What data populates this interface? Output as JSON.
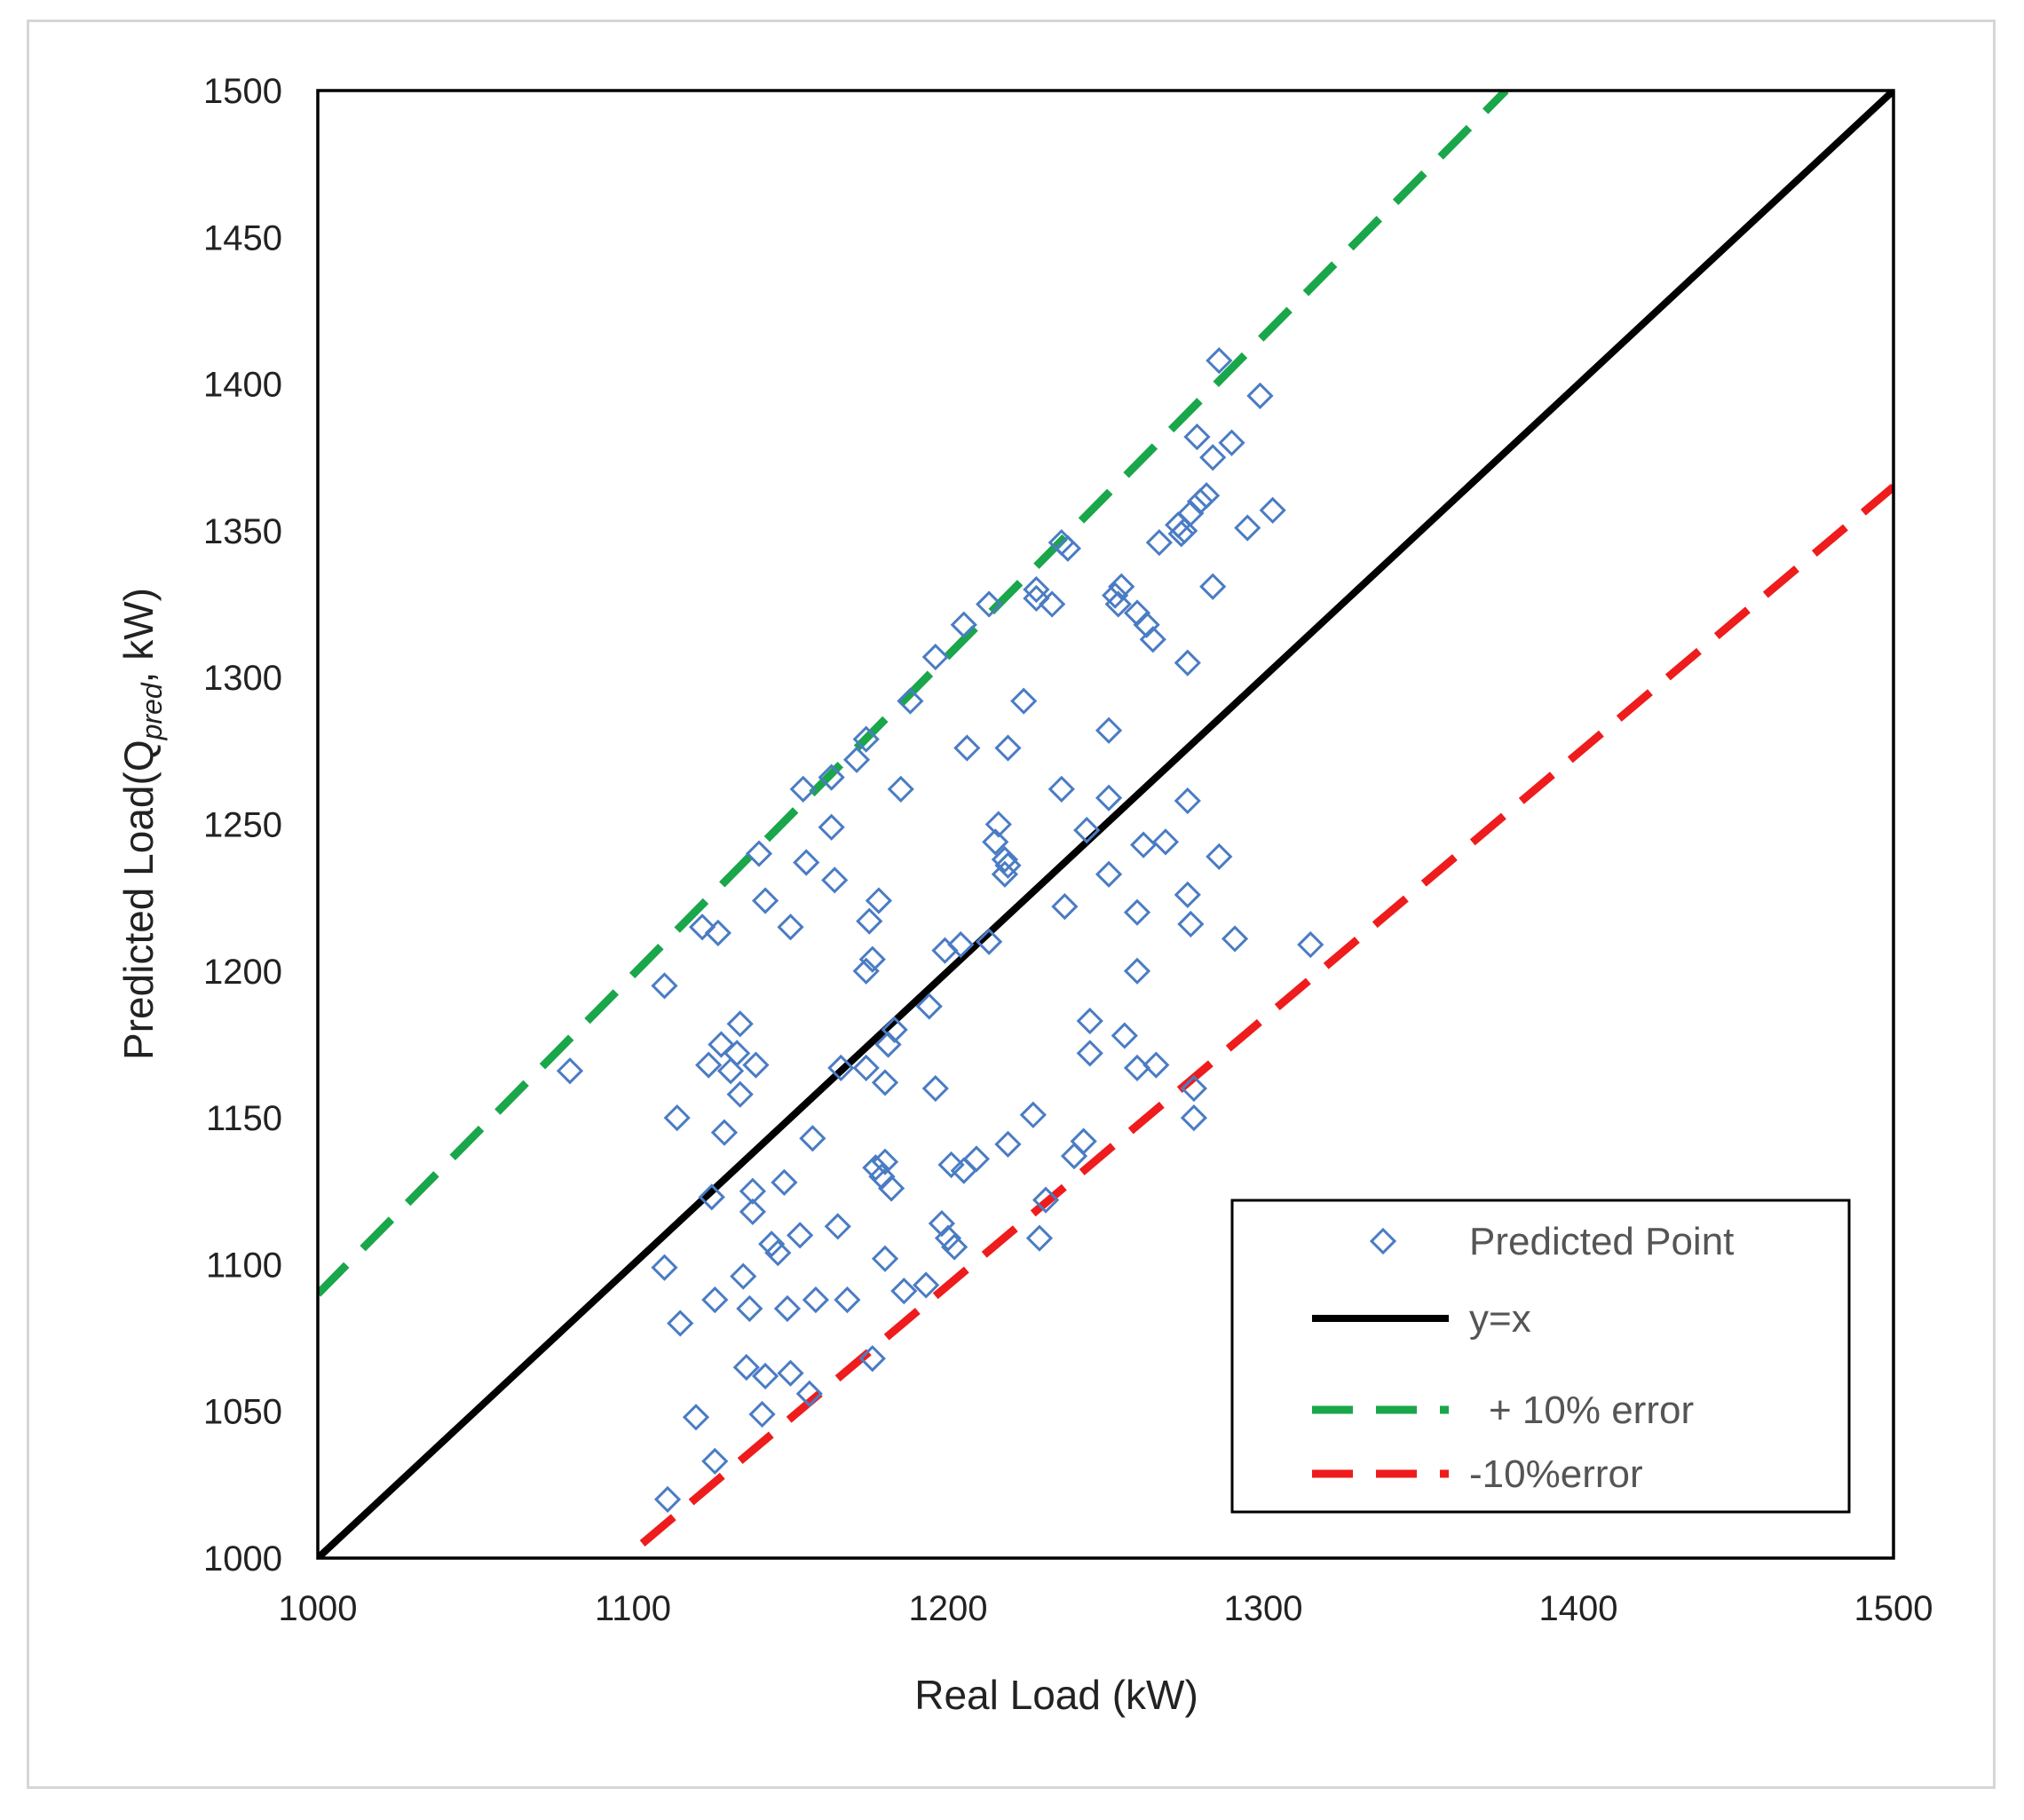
{
  "chart_data": {
    "type": "scatter",
    "xlabel": "Real Load (kW)",
    "ylabel": {
      "prefix": "Predicted Load(Q",
      "subscript": "pred",
      "suffix": ", kW)"
    },
    "xlim": [
      1000,
      1500
    ],
    "ylim": [
      1000,
      1500
    ],
    "x_ticks": [
      1000,
      1100,
      1200,
      1300,
      1400,
      1500
    ],
    "y_ticks": [
      1000,
      1050,
      1100,
      1150,
      1200,
      1250,
      1300,
      1350,
      1400,
      1450,
      1500
    ],
    "grid": false,
    "legend_position": "bottom-right",
    "series": [
      {
        "name": "Predicted Point",
        "kind": "scatter",
        "marker": "diamond-open",
        "color": "#4a7cc4",
        "points": [
          [
            1080,
            1166
          ],
          [
            1110,
            1195
          ],
          [
            1110,
            1099
          ],
          [
            1111,
            1020
          ],
          [
            1114,
            1150
          ],
          [
            1115,
            1080
          ],
          [
            1120,
            1048
          ],
          [
            1122,
            1215
          ],
          [
            1124,
            1168
          ],
          [
            1125,
            1123
          ],
          [
            1126,
            1033
          ],
          [
            1126,
            1088
          ],
          [
            1127,
            1213
          ],
          [
            1128,
            1175
          ],
          [
            1129,
            1145
          ],
          [
            1131,
            1166
          ],
          [
            1133,
            1172
          ],
          [
            1134,
            1182
          ],
          [
            1134,
            1158
          ],
          [
            1135,
            1096
          ],
          [
            1136,
            1065
          ],
          [
            1137,
            1085
          ],
          [
            1138,
            1125
          ],
          [
            1138,
            1118
          ],
          [
            1139,
            1168
          ],
          [
            1140,
            1240
          ],
          [
            1141,
            1049
          ],
          [
            1142,
            1062
          ],
          [
            1142,
            1224
          ],
          [
            1144,
            1107
          ],
          [
            1146,
            1104
          ],
          [
            1148,
            1128
          ],
          [
            1149,
            1085
          ],
          [
            1150,
            1215
          ],
          [
            1150,
            1063
          ],
          [
            1153,
            1110
          ],
          [
            1154,
            1262
          ],
          [
            1155,
            1237
          ],
          [
            1156,
            1056
          ],
          [
            1157,
            1143
          ],
          [
            1158,
            1088
          ],
          [
            1163,
            1266
          ],
          [
            1163,
            1249
          ],
          [
            1164,
            1231
          ],
          [
            1165,
            1113
          ],
          [
            1166,
            1167
          ],
          [
            1168,
            1088
          ],
          [
            1171,
            1272
          ],
          [
            1174,
            1200
          ],
          [
            1174,
            1279
          ],
          [
            1174,
            1167
          ],
          [
            1175,
            1217
          ],
          [
            1176,
            1204
          ],
          [
            1176,
            1068
          ],
          [
            1177,
            1133
          ],
          [
            1178,
            1224
          ],
          [
            1179,
            1130
          ],
          [
            1180,
            1135
          ],
          [
            1180,
            1102
          ],
          [
            1180,
            1162
          ],
          [
            1181,
            1175
          ],
          [
            1182,
            1126
          ],
          [
            1183,
            1180
          ],
          [
            1185,
            1262
          ],
          [
            1186,
            1091
          ],
          [
            1188,
            1292
          ],
          [
            1193,
            1093
          ],
          [
            1194,
            1188
          ],
          [
            1196,
            1307
          ],
          [
            1196,
            1160
          ],
          [
            1198,
            1114
          ],
          [
            1199,
            1207
          ],
          [
            1200,
            1109
          ],
          [
            1201,
            1134
          ],
          [
            1202,
            1106
          ],
          [
            1204,
            1209
          ],
          [
            1205,
            1318
          ],
          [
            1205,
            1132
          ],
          [
            1206,
            1276
          ],
          [
            1209,
            1136
          ],
          [
            1213,
            1325
          ],
          [
            1213,
            1210
          ],
          [
            1215,
            1244
          ],
          [
            1216,
            1250
          ],
          [
            1218,
            1233
          ],
          [
            1218,
            1238
          ],
          [
            1219,
            1236
          ],
          [
            1219,
            1141
          ],
          [
            1219,
            1276
          ],
          [
            1224,
            1292
          ],
          [
            1227,
            1151
          ],
          [
            1228,
            1330
          ],
          [
            1228,
            1327
          ],
          [
            1229,
            1109
          ],
          [
            1231,
            1122
          ],
          [
            1233,
            1325
          ],
          [
            1236,
            1262
          ],
          [
            1236,
            1346
          ],
          [
            1237,
            1222
          ],
          [
            1238,
            1344
          ],
          [
            1240,
            1137
          ],
          [
            1243,
            1142
          ],
          [
            1244,
            1248
          ],
          [
            1245,
            1172
          ],
          [
            1245,
            1183
          ],
          [
            1251,
            1259
          ],
          [
            1251,
            1282
          ],
          [
            1251,
            1233
          ],
          [
            1253,
            1328
          ],
          [
            1254,
            1325
          ],
          [
            1255,
            1331
          ],
          [
            1256,
            1178
          ],
          [
            1260,
            1322
          ],
          [
            1260,
            1167
          ],
          [
            1260,
            1220
          ],
          [
            1260,
            1200
          ],
          [
            1262,
            1243
          ],
          [
            1263,
            1318
          ],
          [
            1265,
            1313
          ],
          [
            1266,
            1168
          ],
          [
            1267,
            1346
          ],
          [
            1269,
            1244
          ],
          [
            1273,
            1352
          ],
          [
            1274,
            1349
          ],
          [
            1275,
            1350
          ],
          [
            1276,
            1305
          ],
          [
            1276,
            1258
          ],
          [
            1276,
            1226
          ],
          [
            1277,
            1216
          ],
          [
            1277,
            1356
          ],
          [
            1278,
            1150
          ],
          [
            1278,
            1160
          ],
          [
            1279,
            1382
          ],
          [
            1280,
            1360
          ],
          [
            1282,
            1362
          ],
          [
            1284,
            1375
          ],
          [
            1284,
            1331
          ],
          [
            1286,
            1239
          ],
          [
            1286,
            1408
          ],
          [
            1290,
            1380
          ],
          [
            1291,
            1211
          ],
          [
            1295,
            1351
          ],
          [
            1299,
            1396
          ],
          [
            1303,
            1357
          ],
          [
            1315,
            1209
          ]
        ]
      },
      {
        "name": "y=x",
        "kind": "line",
        "style": "solid",
        "color": "#000000",
        "points": [
          [
            1000,
            1000
          ],
          [
            1500,
            1500
          ]
        ]
      },
      {
        "name": "+ 10% error",
        "kind": "line",
        "style": "dashed",
        "color": "#1aa64a",
        "points": [
          [
            1000,
            1090
          ],
          [
            1377,
            1500
          ]
        ]
      },
      {
        "name": "-10%error",
        "kind": "line",
        "style": "dashed",
        "color": "#ee1c1c",
        "points": [
          [
            1103,
            1005
          ],
          [
            1500,
            1365
          ]
        ]
      }
    ]
  }
}
